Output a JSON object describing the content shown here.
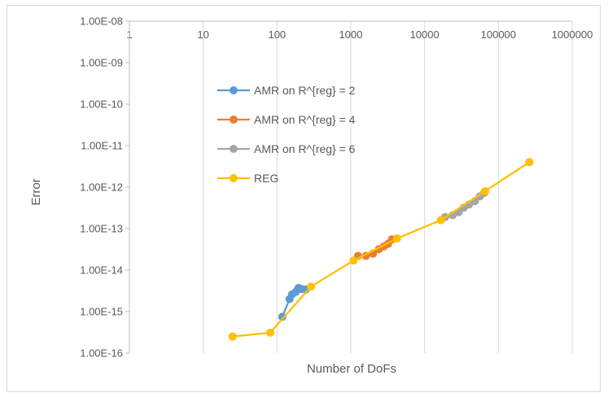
{
  "chart_data": {
    "type": "scatter",
    "title": "",
    "xlabel": "Number of DoFs",
    "ylabel": "Error",
    "xscale": "log",
    "yscale": "log",
    "xlim": [
      1,
      1000000
    ],
    "ylim": [
      1e-16,
      1e-08
    ],
    "x_ticks": [
      "1",
      "10",
      "100",
      "1000",
      "10000",
      "100000",
      "1000000"
    ],
    "y_ticks": [
      "1.00E-08",
      "1.00E-09",
      "1.00E-10",
      "1.00E-11",
      "1.00E-12",
      "1.00E-13",
      "1.00E-14",
      "1.00E-15",
      "1.00E-16"
    ],
    "grid": "vertical",
    "legend_position": "upper-left inside",
    "series": [
      {
        "name": "AMR on R^{reg} = 2",
        "color": "#5b9bd5",
        "points": [
          [
            118,
            7.5e-16
          ],
          [
            148,
            2e-15
          ],
          [
            160,
            2.6e-15
          ],
          [
            180,
            3e-15
          ],
          [
            195,
            3.7e-15
          ],
          [
            215,
            3.5e-15
          ],
          [
            245,
            3.4e-15
          ]
        ]
      },
      {
        "name": "AMR on R^{reg} = 4",
        "color": "#ed7d31",
        "points": [
          [
            1250,
            2.2e-14
          ],
          [
            1600,
            2.2e-14
          ],
          [
            2000,
            2.5e-14
          ],
          [
            2400,
            3.2e-14
          ],
          [
            2800,
            3.7e-14
          ],
          [
            3200,
            4.3e-14
          ],
          [
            3600,
            5.5e-14
          ]
        ]
      },
      {
        "name": "AMR on R^{reg} = 6",
        "color": "#a5a5a5",
        "points": [
          [
            19000,
            1.9e-13
          ],
          [
            24000,
            2.1e-13
          ],
          [
            29000,
            2.5e-13
          ],
          [
            34000,
            3.2e-13
          ],
          [
            40000,
            3.8e-13
          ],
          [
            48000,
            4.6e-13
          ],
          [
            56000,
            6e-13
          ],
          [
            64000,
            7.2e-13
          ]
        ]
      },
      {
        "name": "REG",
        "color": "#ffc000",
        "points": [
          [
            25,
            2.5e-16
          ],
          [
            81,
            3.1e-16
          ],
          [
            289,
            4e-15
          ],
          [
            1089,
            1.7e-14
          ],
          [
            4225,
            5.8e-14
          ],
          [
            16641,
            1.6e-13
          ],
          [
            66049,
            8e-13
          ],
          [
            263169,
            4e-12
          ]
        ]
      }
    ]
  }
}
